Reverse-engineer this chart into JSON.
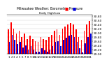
{
  "title": "Milwaukee Weather: Barometric Pressure",
  "subtitle": "Daily High/Low",
  "bar_width": 0.42,
  "ylim": [
    29.0,
    30.85
  ],
  "yticks": [
    29.0,
    29.2,
    29.4,
    29.6,
    29.8,
    30.0,
    30.2,
    30.4,
    30.6,
    30.8
  ],
  "ytick_labels": [
    "29.00",
    "29.20",
    "29.40",
    "29.60",
    "29.80",
    "30.00",
    "30.20",
    "30.40",
    "30.60",
    "30.80"
  ],
  "color_high": "#FF0000",
  "color_low": "#0000DD",
  "background": "#FFFFFF",
  "grid_color": "#CCCCCC",
  "highs": [
    30.15,
    30.5,
    30.2,
    29.95,
    30.1,
    29.8,
    29.95,
    29.7,
    29.85,
    29.7,
    29.6,
    29.55,
    29.8,
    29.7,
    29.65,
    29.8,
    29.9,
    30.1,
    30.15,
    29.9,
    30.2,
    30.3,
    30.4,
    30.45,
    30.4,
    30.15,
    29.8,
    29.65,
    30.1,
    30.4,
    30.55
  ],
  "lows": [
    29.55,
    29.9,
    29.65,
    29.45,
    29.55,
    29.3,
    29.4,
    29.2,
    29.35,
    29.2,
    29.1,
    29.1,
    29.25,
    29.15,
    29.1,
    29.2,
    29.35,
    29.55,
    29.6,
    29.35,
    29.65,
    29.75,
    29.85,
    29.9,
    29.8,
    29.55,
    29.25,
    29.05,
    29.5,
    29.8,
    29.95
  ],
  "xlabels": [
    "1",
    "2",
    "3",
    "4",
    "5",
    "6",
    "7",
    "8",
    "9",
    "10",
    "11",
    "12",
    "13",
    "14",
    "15",
    "16",
    "17",
    "18",
    "19",
    "20",
    "21",
    "22",
    "23",
    "24",
    "25",
    "26",
    "27",
    "28",
    "29",
    "30",
    "31"
  ]
}
